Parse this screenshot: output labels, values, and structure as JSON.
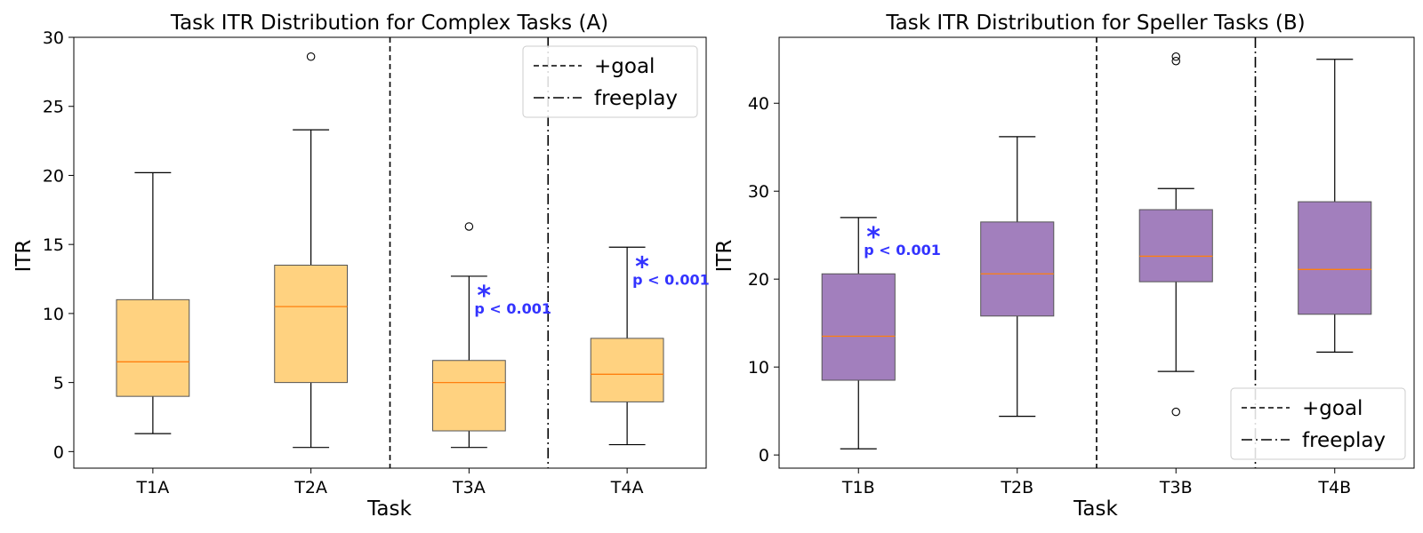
{
  "chart_data": [
    {
      "type": "box",
      "title": "Task ITR Distribution for Complex Tasks (A)",
      "xlabel": "Task",
      "ylabel": "ITR",
      "ylim": [
        -1.2,
        30
      ],
      "yticks": [
        0,
        5,
        10,
        15,
        20,
        25,
        30
      ],
      "box_color": "#ffd280",
      "median_color": "#ff7f0e",
      "categories": [
        "T1A",
        "T2A",
        "T3A",
        "T4A"
      ],
      "boxes": [
        {
          "label": "T1A",
          "whisker_low": 1.3,
          "q1": 4.0,
          "median": 6.5,
          "q3": 11.0,
          "whisker_high": 20.2,
          "outliers": []
        },
        {
          "label": "T2A",
          "whisker_low": 0.3,
          "q1": 5.0,
          "median": 10.5,
          "q3": 13.5,
          "whisker_high": 23.3,
          "outliers": [
            28.6
          ]
        },
        {
          "label": "T3A",
          "whisker_low": 0.3,
          "q1": 1.5,
          "median": 5.0,
          "q3": 6.6,
          "whisker_high": 12.7,
          "outliers": [
            16.3
          ]
        },
        {
          "label": "T4A",
          "whisker_low": 0.5,
          "q1": 3.6,
          "median": 5.6,
          "q3": 8.2,
          "whisker_high": 14.8,
          "outliers": []
        }
      ],
      "vlines": [
        {
          "after_index": 1,
          "style": "dashed",
          "legend": "+goal"
        },
        {
          "after_index": 2,
          "style": "dashdot",
          "legend": "freeplay"
        }
      ],
      "legend_position": "top-right",
      "annotations": [
        {
          "box": "T3A",
          "star": "*",
          "text": "p < 0.001",
          "y": 12.7
        },
        {
          "box": "T4A",
          "star": "*",
          "text": "p < 0.001",
          "y": 14.8
        }
      ]
    },
    {
      "type": "box",
      "title": "Task ITR Distribution for Speller Tasks (B)",
      "xlabel": "Task",
      "ylabel": "ITR",
      "ylim": [
        -1.5,
        47.5
      ],
      "yticks": [
        0,
        10,
        20,
        30,
        40
      ],
      "box_color": "#a27fbd",
      "median_color": "#ff7f0e",
      "categories": [
        "T1B",
        "T2B",
        "T3B",
        "T4B"
      ],
      "boxes": [
        {
          "label": "T1B",
          "whisker_low": 0.7,
          "q1": 8.5,
          "median": 13.5,
          "q3": 20.6,
          "whisker_high": 27.0,
          "outliers": []
        },
        {
          "label": "T2B",
          "whisker_low": 4.4,
          "q1": 15.8,
          "median": 20.6,
          "q3": 26.5,
          "whisker_high": 36.2,
          "outliers": []
        },
        {
          "label": "T3B",
          "whisker_low": 9.5,
          "q1": 19.7,
          "median": 22.6,
          "q3": 27.9,
          "whisker_high": 30.3,
          "outliers": [
            44.8,
            45.3,
            4.9
          ]
        },
        {
          "label": "T4B",
          "whisker_low": 11.7,
          "q1": 16.0,
          "median": 21.1,
          "q3": 28.8,
          "whisker_high": 45.0,
          "outliers": []
        }
      ],
      "vlines": [
        {
          "after_index": 1,
          "style": "dashed",
          "legend": "+goal"
        },
        {
          "after_index": 2,
          "style": "dashdot",
          "legend": "freeplay"
        }
      ],
      "legend_position": "bottom-right",
      "annotations": [
        {
          "box": "T1B",
          "star": "*",
          "text": "p < 0.001",
          "y": 27.0
        }
      ]
    }
  ]
}
